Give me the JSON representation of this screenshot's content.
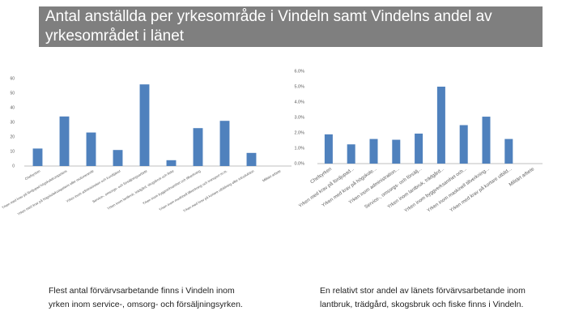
{
  "title": [
    "Antal anställda per yrkesområde i Vindeln samt Vindelns andel av",
    "yrkesområdet i länet"
  ],
  "captions": [
    [
      "Flest antal förvärvsarbetande finns i Vindeln inom",
      "yrken inom service-, omsorg- och försäljningsyrken."
    ],
    [
      "En relativt stor andel av länets förvärvsarbetande inom",
      "lantbruk, trädgård, skogsbruk och fiske finns i Vindeln."
    ]
  ],
  "chart_data": [
    {
      "type": "bar",
      "color": "#4f81bd",
      "categories": [
        "Chefsyrken",
        "Yrken med krav på fördjupad högskolekompetens",
        "Yrken med krav på högskolekompetens eller motsvarande",
        "Yrken inom administration och kundtjänst",
        "Service-, omsorgs- och försäljningsarbete",
        "Yrken inom lantbruk, trädgård, skogsbruk och fiske",
        "Yrken inom byggverksamhet och tillverkning",
        "Yrken inom maskinell tillverkning och transport m.m.",
        "Yrken med krav på kortare utbildning eller introduktion",
        "Militärt arbete"
      ],
      "values": [
        12,
        34,
        23,
        11,
        56,
        4,
        26,
        31,
        9,
        0
      ],
      "ylim": [
        0,
        60
      ],
      "yticks": [
        0,
        10,
        20,
        30,
        40,
        50,
        60
      ]
    },
    {
      "type": "bar",
      "color": "#4f81bd",
      "categories": [
        "Chefsyrken",
        "Yrken med krav på fördjupad...",
        "Yrken med krav på högskole...",
        "Yrken inom administration...",
        "Service-, omsorgs- och försälj...",
        "Yrken inom lantbruk, trädgård...",
        "Yrken inom byggverksamhet och...",
        "Yrken inom maskinell tillverkning...",
        "Yrken med krav på kortare utbild...",
        "Militärt arbete"
      ],
      "values": [
        1.9,
        1.25,
        1.6,
        1.55,
        1.95,
        5.0,
        2.5,
        3.05,
        1.6,
        0
      ],
      "ylim": [
        0,
        6
      ],
      "yticks": [
        {
          "value": 0,
          "label": "0.0%"
        },
        {
          "value": 1,
          "label": "1.0%"
        },
        {
          "value": 2,
          "label": "2.0%"
        },
        {
          "value": 3,
          "label": "3.0%"
        },
        {
          "value": 4,
          "label": "4.0%"
        },
        {
          "value": 5,
          "label": "5.0%"
        },
        {
          "value": 6,
          "label": "6.0%"
        }
      ]
    }
  ]
}
